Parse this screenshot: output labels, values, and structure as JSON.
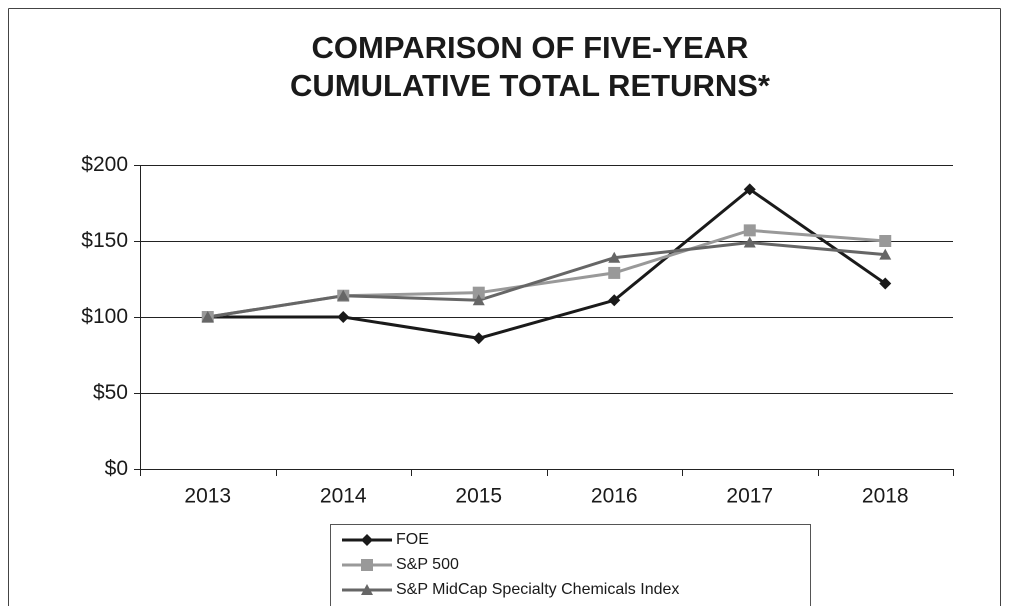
{
  "chart_data": {
    "type": "line",
    "title": [
      "COMPARISON OF FIVE-YEAR",
      "CUMULATIVE TOTAL RETURNS*"
    ],
    "categories": [
      "2013",
      "2014",
      "2015",
      "2016",
      "2017",
      "2018"
    ],
    "series": [
      {
        "name": "FOE",
        "color": "#1a1a1a",
        "marker": "diamond",
        "values": [
          100,
          100,
          86,
          111,
          184,
          122
        ]
      },
      {
        "name": "S&P 500",
        "color": "#999999",
        "marker": "square",
        "values": [
          100,
          114,
          116,
          129,
          157,
          150
        ]
      },
      {
        "name": "S&P MidCap Specialty Chemicals Index",
        "color": "#666666",
        "marker": "triangle",
        "values": [
          100,
          114,
          111,
          139,
          149,
          141
        ]
      }
    ],
    "ylim": [
      0,
      200
    ],
    "yticks": [
      {
        "value": 0,
        "label": "$0"
      },
      {
        "value": 50,
        "label": "$50"
      },
      {
        "value": 100,
        "label": "$100"
      },
      {
        "value": 150,
        "label": "$150"
      },
      {
        "value": 200,
        "label": "$200"
      }
    ],
    "grid": true
  }
}
